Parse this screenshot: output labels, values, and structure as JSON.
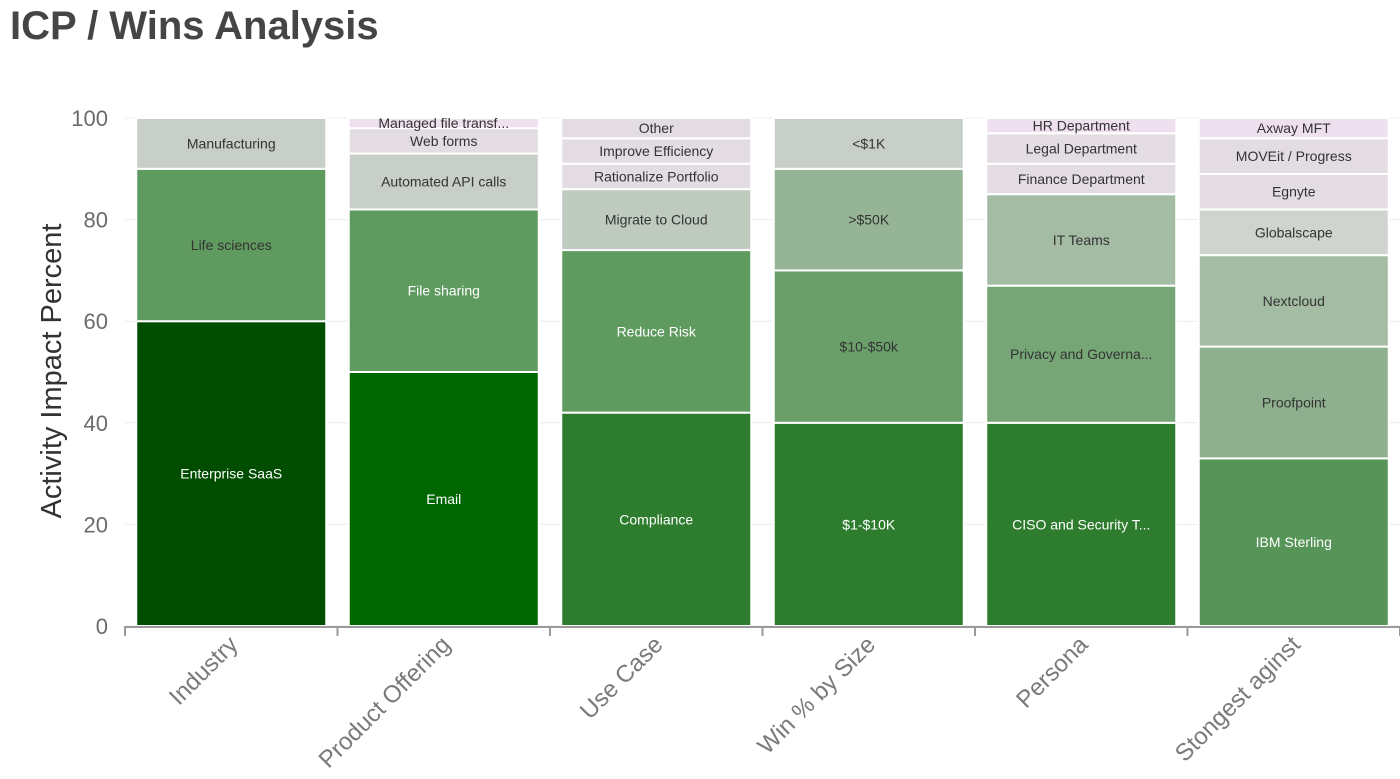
{
  "page": {
    "title": "ICP / Wins Analysis"
  },
  "chart_data": {
    "type": "bar",
    "stacked": true,
    "ylabel": "Activity Impact Percent",
    "ylim": [
      0,
      100
    ],
    "yticks": [
      0,
      20,
      40,
      60,
      80,
      100
    ],
    "grid": true,
    "categories": [
      "Industry",
      "Product Offering",
      "Use Case",
      "Win % by Size",
      "Persona",
      "Stongest aginst"
    ],
    "stacks": [
      {
        "category": "Industry",
        "segments": [
          {
            "label": "Enterprise SaaS",
            "value": 60,
            "color": "#004d00",
            "text_color": "#ffffff"
          },
          {
            "label": "Life sciences",
            "value": 30,
            "color": "#5f9a5f",
            "text_color": "#333333"
          },
          {
            "label": "Manufacturing",
            "value": 10,
            "color": "#c8cfc8",
            "text_color": "#333333"
          }
        ]
      },
      {
        "category": "Product Offering",
        "segments": [
          {
            "label": "Email",
            "value": 50,
            "color": "#006600",
            "text_color": "#ffffff"
          },
          {
            "label": "File sharing",
            "value": 32,
            "color": "#5f9a5f",
            "text_color": "#ffffff"
          },
          {
            "label": "Automated API calls",
            "value": 11,
            "color": "#c8cfc8",
            "text_color": "#333333"
          },
          {
            "label": "Web forms",
            "value": 5,
            "color": "#e3dce3",
            "text_color": "#333333"
          },
          {
            "label": "Managed file transf...",
            "value": 2,
            "color": "#efe0ef",
            "text_color": "#333333"
          }
        ]
      },
      {
        "category": "Use Case",
        "segments": [
          {
            "label": "Compliance",
            "value": 42,
            "color": "#2e7d2e",
            "text_color": "#ffffff"
          },
          {
            "label": "Reduce Risk",
            "value": 32,
            "color": "#5f9a5f",
            "text_color": "#ffffff"
          },
          {
            "label": "Migrate to Cloud",
            "value": 12,
            "color": "#bfcbbf",
            "text_color": "#333333"
          },
          {
            "label": "Rationalize Portfolio",
            "value": 5,
            "color": "#e3dce3",
            "text_color": "#333333"
          },
          {
            "label": "Improve Efficiency",
            "value": 5,
            "color": "#e3dce3",
            "text_color": "#333333"
          },
          {
            "label": "Other",
            "value": 4,
            "color": "#e3dce3",
            "text_color": "#333333"
          }
        ]
      },
      {
        "category": "Win % by Size",
        "segments": [
          {
            "label": "$1-$10K",
            "value": 40,
            "color": "#2e7d2e",
            "text_color": "#ffffff"
          },
          {
            "label": "$10-$50k",
            "value": 30,
            "color": "#6a9f6a",
            "text_color": "#333333"
          },
          {
            "label": ">$50K",
            "value": 20,
            "color": "#96b596",
            "text_color": "#333333"
          },
          {
            "label": "<$1K",
            "value": 10,
            "color": "#c8cfc8",
            "text_color": "#333333"
          }
        ]
      },
      {
        "category": "Persona",
        "segments": [
          {
            "label": "CISO and Security T...",
            "value": 40,
            "color": "#2e7d2e",
            "text_color": "#ffffff"
          },
          {
            "label": "Privacy and Governa...",
            "value": 27,
            "color": "#76a676",
            "text_color": "#333333"
          },
          {
            "label": "IT Teams",
            "value": 18,
            "color": "#a3bca3",
            "text_color": "#333333"
          },
          {
            "label": "Finance Department",
            "value": 6,
            "color": "#e3dce3",
            "text_color": "#333333"
          },
          {
            "label": "Legal Department",
            "value": 6,
            "color": "#e3dce3",
            "text_color": "#333333"
          },
          {
            "label": "HR Department",
            "value": 3,
            "color": "#efe0ef",
            "text_color": "#333333"
          }
        ]
      },
      {
        "category": "Stongest aginst",
        "segments": [
          {
            "label": "IBM Sterling",
            "value": 33,
            "color": "#579457",
            "text_color": "#ffffff"
          },
          {
            "label": "Proofpoint",
            "value": 22,
            "color": "#8fb08f",
            "text_color": "#333333"
          },
          {
            "label": "Nextcloud",
            "value": 18,
            "color": "#a3bca3",
            "text_color": "#333333"
          },
          {
            "label": "Globalscape",
            "value": 9,
            "color": "#cfd4cf",
            "text_color": "#333333"
          },
          {
            "label": "Egnyte",
            "value": 7,
            "color": "#e3dce3",
            "text_color": "#333333"
          },
          {
            "label": "MOVEit / Progress",
            "value": 7,
            "color": "#e3dce3",
            "text_color": "#333333"
          },
          {
            "label": "Axway MFT",
            "value": 4,
            "color": "#efe0ef",
            "text_color": "#333333"
          }
        ]
      }
    ]
  }
}
